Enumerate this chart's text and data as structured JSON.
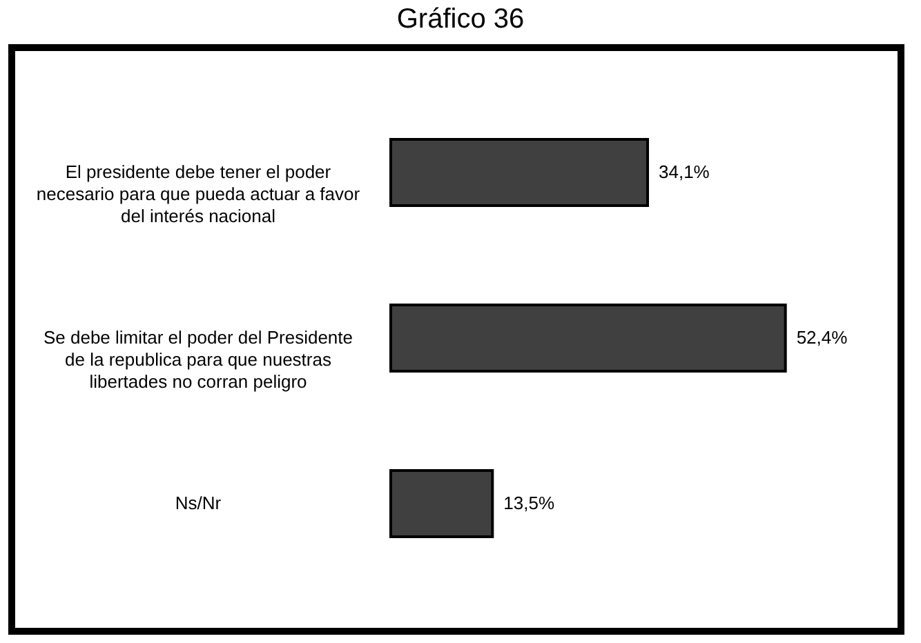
{
  "chart_data": {
    "type": "bar",
    "title": "Gráfico 36",
    "orientation": "horizontal",
    "categories": [
      "El presidente debe tener el poder necesario para que pueda actuar a favor del interés nacional",
      "Se debe limitar el poder del Presidente de la republica para que nuestras libertades no corran peligro",
      "Ns/Nr"
    ],
    "values": [
      34.1,
      52.4,
      13.5
    ],
    "value_labels": [
      "34,1%",
      "52,4%",
      "13,5%"
    ],
    "color": "#404040"
  }
}
